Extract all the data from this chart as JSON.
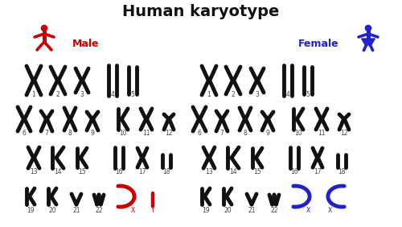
{
  "title": "Human karyotype",
  "title_fontsize": 14,
  "title_color": "#111111",
  "male_label": "Male",
  "female_label": "Female",
  "male_color": "#cc0000",
  "female_color": "#2222cc",
  "background_color": "#ffffff",
  "chromosome_color": "#111111",
  "sex_chrom_male_color": "#cc0000",
  "sex_chrom_female_color": "#2222cc",
  "figsize": [
    5.0,
    2.82
  ],
  "dpi": 100
}
